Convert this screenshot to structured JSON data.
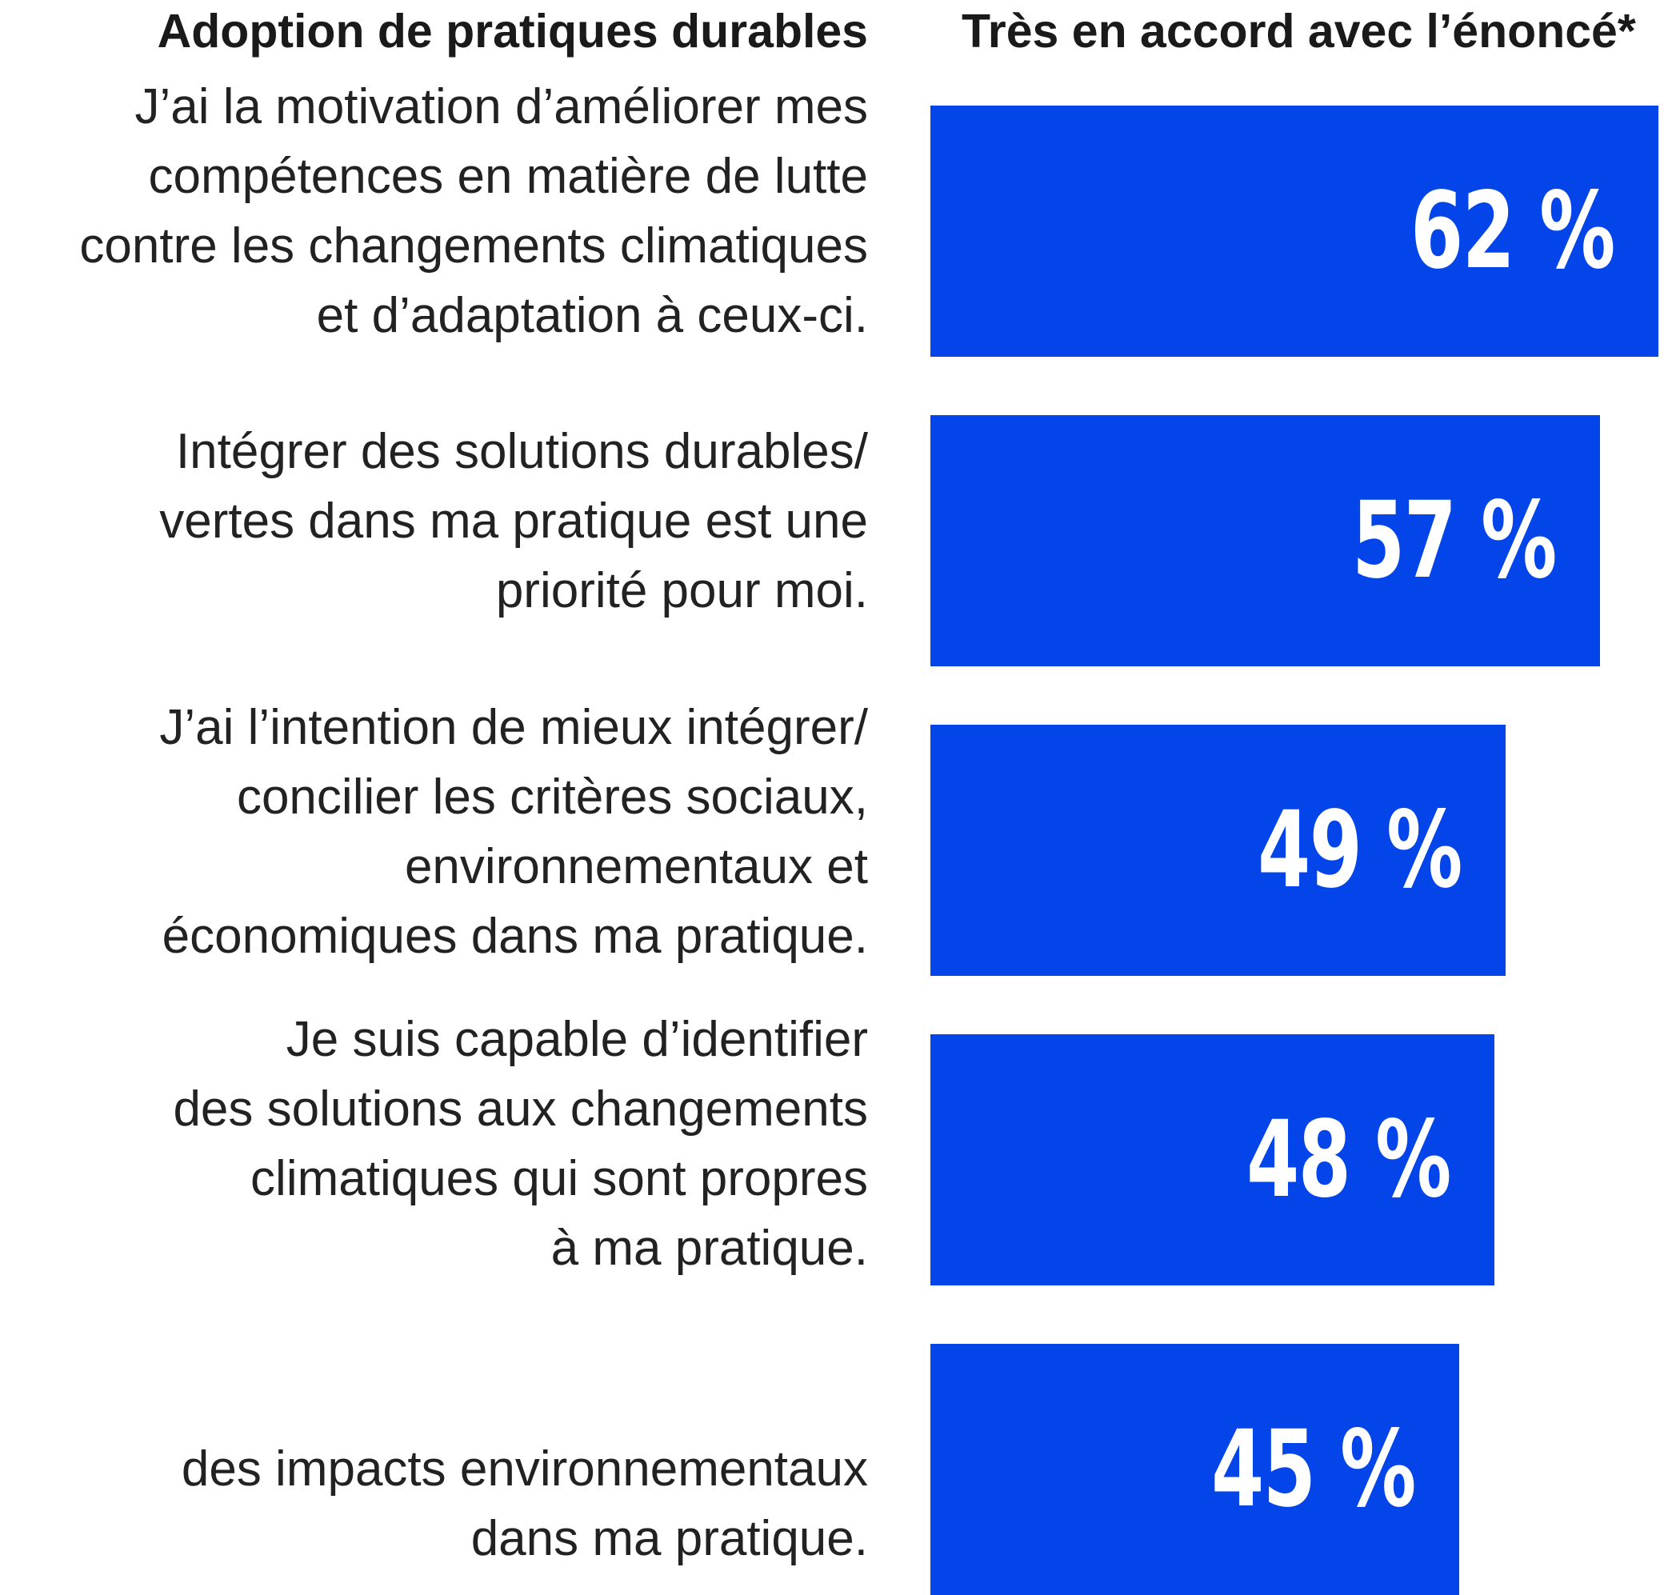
{
  "chart_data": {
    "type": "bar",
    "orientation": "horizontal",
    "title_left": "Adoption de pratiques durables",
    "title_right": "Très en accord avec l’énoncé*",
    "categories": [
      [
        "J’ai la motivation d’améliorer mes",
        "compétences en matière de lutte",
        "contre les changements climatiques",
        "et d’adaptation à ceux-ci."
      ],
      [
        "Intégrer des solutions durables/",
        "vertes dans ma pratique est une",
        "priorité pour moi."
      ],
      [
        "J’ai l’intention de mieux intégrer/",
        "concilier les critères sociaux,",
        "environnementaux et",
        "économiques dans ma pratique."
      ],
      [
        "Je suis capable d’identifier",
        "des solutions aux changements",
        "climatiques qui sont propres",
        "à ma pratique."
      ],
      [
        "des impacts environnementaux",
        "dans ma pratique."
      ]
    ],
    "values": [
      62,
      57,
      49,
      48,
      45
    ],
    "value_labels": [
      "62 %",
      "57 %",
      "49 %",
      "48 %",
      "45 %"
    ],
    "unit": "%",
    "bar_color": "#0345e8",
    "label_color": "#ffffff",
    "grid": false,
    "legend": "none"
  }
}
